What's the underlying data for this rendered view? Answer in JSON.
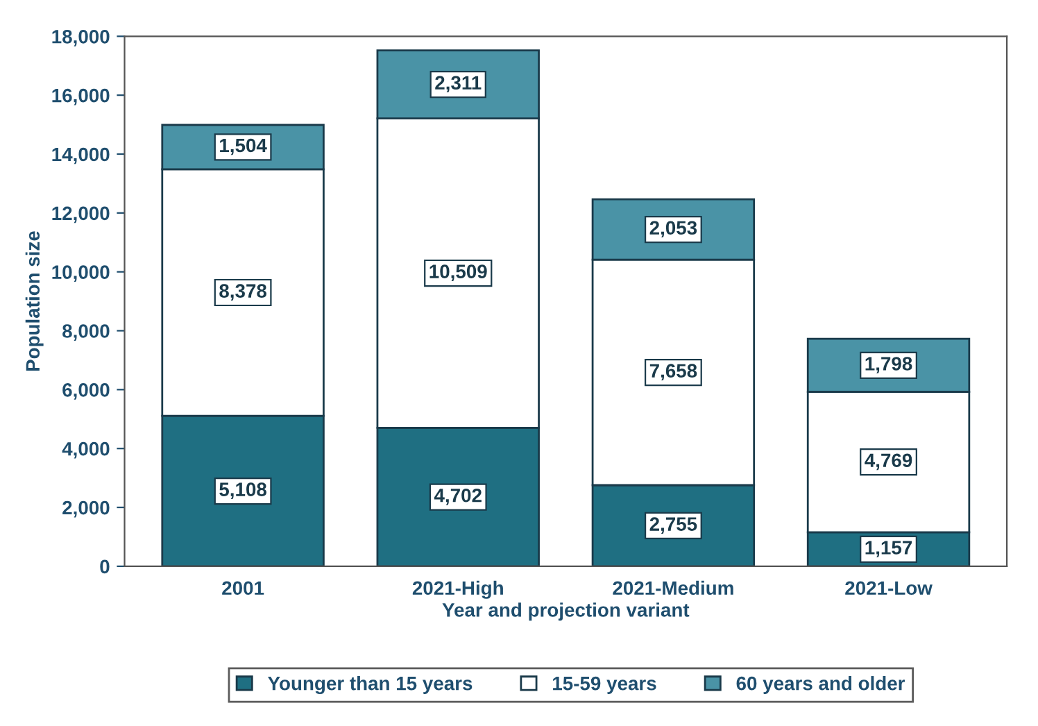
{
  "chart_data": {
    "type": "bar",
    "stacked": true,
    "xlabel": "Year and projection variant",
    "ylabel": "Population size",
    "categories": [
      "2001",
      "2021-High",
      "2021-Medium",
      "2021-Low"
    ],
    "series": [
      {
        "name": "Younger than 15 years",
        "color": "#1f6f82",
        "values": [
          5108,
          4702,
          2755,
          1157
        ],
        "value_labels": [
          "5,108",
          "4,702",
          "2,755",
          "1,157"
        ]
      },
      {
        "name": "15-59 years",
        "color": "#ffffff",
        "values": [
          8378,
          10509,
          7658,
          4769
        ],
        "value_labels": [
          "8,378",
          "10,509",
          "7,658",
          "4,769"
        ]
      },
      {
        "name": "60 years and older",
        "color": "#4a93a6",
        "values": [
          1504,
          2311,
          2053,
          1798
        ],
        "value_labels": [
          "1,504",
          "2,311",
          "2,053",
          "1,798"
        ]
      }
    ],
    "ylim": [
      0,
      18000
    ],
    "yticks": [
      0,
      {
        "value": 2000,
        "label": "2,000"
      },
      {
        "value": 4000,
        "label": "4,000"
      },
      {
        "value": 6000,
        "label": "6,000"
      },
      {
        "value": 8000,
        "label": "8,000"
      },
      {
        "value": 10000,
        "label": "10,000"
      },
      {
        "value": 12000,
        "label": "12,000"
      },
      {
        "value": 14000,
        "label": "14,000"
      },
      {
        "value": 16000,
        "label": "16,000"
      },
      {
        "value": 18000,
        "label": "18,000"
      }
    ],
    "grid": false,
    "legend": "bottom"
  }
}
